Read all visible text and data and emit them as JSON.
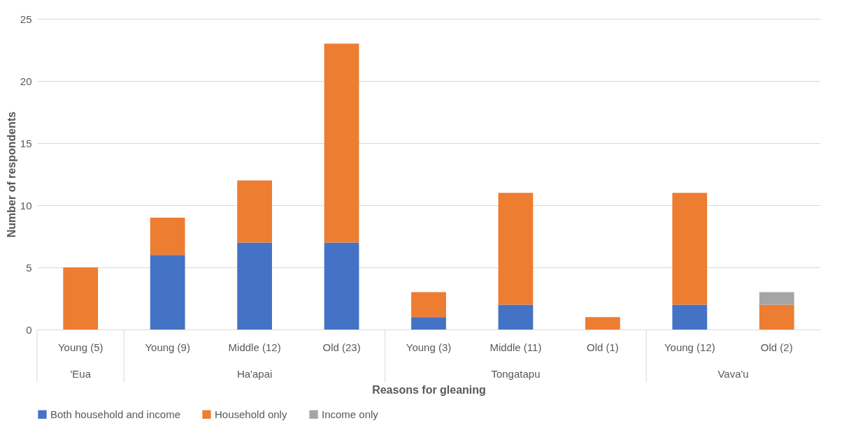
{
  "chart_data": {
    "type": "bar",
    "stacked": true,
    "xlabel": "Reasons for gleaning",
    "ylabel": "Number of respondents",
    "categories": [
      "Young (5)",
      "Young (9)",
      "Middle (12)",
      "Old (23)",
      "Young (3)",
      "Middle (11)",
      "Old (1)",
      "Young (12)",
      "Old (2)"
    ],
    "series": [
      {
        "name": "Both household and income",
        "color": "#4472c4",
        "values": [
          0,
          6,
          7,
          7,
          1,
          2,
          0,
          2,
          0
        ]
      },
      {
        "name": "Household only",
        "color": "#ed7d31",
        "values": [
          5,
          3,
          5,
          16,
          2,
          9,
          1,
          9,
          2
        ]
      },
      {
        "name": "Income only",
        "color": "#a5a5a5",
        "values": [
          0,
          0,
          0,
          0,
          0,
          0,
          0,
          0,
          1
        ]
      }
    ],
    "annotations": [
      "'Eua",
      "Ha'apai",
      "Tongatapu",
      "Vava'u"
    ],
    "ylim": [
      0,
      25
    ],
    "yticks": [
      0,
      5,
      10,
      15,
      20,
      25
    ],
    "grid": "y",
    "legend": "bottom"
  }
}
